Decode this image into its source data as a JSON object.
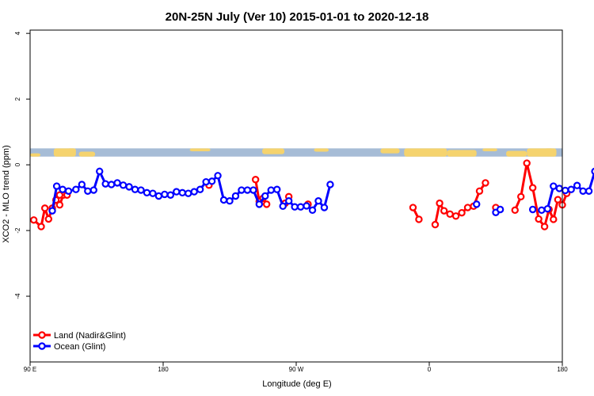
{
  "chart_data": {
    "type": "line",
    "title": "20N-25N July (Ver 10)   2015-01-01 to 2020-12-18",
    "xlabel": "Longitude (deg E)",
    "ylabel": "XCO2 - MLO trend (ppm)",
    "xlim": [
      90,
      450
    ],
    "ylim": [
      -6,
      4.1
    ],
    "x_ticks": [
      {
        "value": 90,
        "label": "90 E"
      },
      {
        "value": 180,
        "label": "180"
      },
      {
        "value": 270,
        "label": "90 W"
      },
      {
        "value": 360,
        "label": "0"
      },
      {
        "value": 450,
        "label": "180"
      }
    ],
    "y_ticks": [
      {
        "value": -4,
        "label": "-4"
      },
      {
        "value": -2,
        "label": "-2"
      },
      {
        "value": 0,
        "label": "0"
      },
      {
        "value": 2,
        "label": "2"
      },
      {
        "value": 4,
        "label": "4"
      }
    ],
    "grid": false,
    "legend_position": "bottom-left",
    "map_strip": {
      "y_from": 0.25,
      "y_to": 0.5,
      "ocean_color": "#a6bcd6",
      "land_color": "#f5d36e"
    },
    "series": [
      {
        "name": "Land (Nadir&Glint)",
        "color": "#ff0000",
        "segments": [
          [
            [
              92.5,
              -1.68
            ],
            [
              97.5,
              -1.88
            ],
            [
              100,
              -1.32
            ],
            [
              102.5,
              -1.65
            ],
            [
              105,
              -1.32
            ],
            [
              107.5,
              -1.07
            ],
            [
              110,
              -1.22
            ],
            [
              112.5,
              -0.92
            ],
            [
              115,
              -0.82
            ]
          ],
          [
            [
              110,
              -0.92
            ],
            [
              115,
              -0.92
            ]
          ],
          [
            [
              211,
              -0.62
            ]
          ],
          [
            [
              242.5,
              -0.45
            ],
            [
              245,
              -1.12
            ],
            [
              247.5,
              -1.02
            ],
            [
              250,
              -1.2
            ]
          ],
          [
            [
              262.5,
              -1.17
            ],
            [
              265,
              -0.97
            ]
          ],
          [
            [
              278,
              -1.2
            ]
          ],
          [
            [
              349,
              -1.3
            ],
            [
              353,
              -1.66
            ]
          ],
          [
            [
              364,
              -1.82
            ],
            [
              367,
              -1.17
            ],
            [
              370,
              -1.4
            ],
            [
              374,
              -1.5
            ],
            [
              378,
              -1.56
            ],
            [
              382,
              -1.46
            ],
            [
              386,
              -1.3
            ],
            [
              390,
              -1.26
            ],
            [
              394,
              -0.8
            ],
            [
              398,
              -0.55
            ]
          ],
          [
            [
              405,
              -1.3
            ]
          ],
          [
            [
              418,
              -1.38
            ],
            [
              422,
              -0.97
            ],
            [
              426,
              0.05
            ],
            [
              430,
              -0.7
            ],
            [
              434,
              -1.65
            ],
            [
              438,
              -1.88
            ],
            [
              441,
              -1.36
            ],
            [
              444,
              -1.66
            ],
            [
              447,
              -1.06
            ],
            [
              450,
              -1.22
            ],
            [
              453,
              -0.87
            ]
          ]
        ]
      },
      {
        "name": "Ocean (Glint)",
        "color": "#0000ff",
        "segments": [
          [
            [
              105,
              -1.4
            ],
            [
              108,
              -0.65
            ],
            [
              112,
              -0.75
            ],
            [
              116,
              -0.8
            ],
            [
              121,
              -0.75
            ],
            [
              125,
              -0.6
            ],
            [
              129,
              -0.8
            ],
            [
              133,
              -0.77
            ],
            [
              137,
              -0.2
            ],
            [
              141,
              -0.58
            ],
            [
              145,
              -0.6
            ],
            [
              149,
              -0.55
            ],
            [
              153,
              -0.62
            ],
            [
              157,
              -0.67
            ],
            [
              161,
              -0.75
            ],
            [
              165,
              -0.77
            ],
            [
              169,
              -0.85
            ],
            [
              173,
              -0.87
            ],
            [
              177,
              -0.95
            ],
            [
              181,
              -0.9
            ],
            [
              185,
              -0.92
            ],
            [
              189,
              -0.82
            ],
            [
              193,
              -0.85
            ],
            [
              197,
              -0.87
            ],
            [
              201,
              -0.82
            ],
            [
              205,
              -0.75
            ],
            [
              209,
              -0.52
            ],
            [
              213,
              -0.5
            ],
            [
              217,
              -0.33
            ],
            [
              221,
              -1.07
            ],
            [
              225,
              -1.1
            ],
            [
              229,
              -0.95
            ],
            [
              233,
              -0.77
            ],
            [
              237,
              -0.77
            ],
            [
              241,
              -0.77
            ],
            [
              245,
              -1.2
            ],
            [
              249,
              -0.95
            ],
            [
              253,
              -0.77
            ],
            [
              257,
              -0.75
            ],
            [
              261,
              -1.26
            ],
            [
              265,
              -1.1
            ],
            [
              269,
              -1.28
            ],
            [
              273,
              -1.28
            ],
            [
              277,
              -1.25
            ],
            [
              281,
              -1.38
            ],
            [
              285,
              -1.1
            ],
            [
              289,
              -1.3
            ],
            [
              293,
              -0.6
            ]
          ],
          [
            [
              392,
              -1.2
            ]
          ],
          [
            [
              405,
              -1.45
            ],
            [
              408,
              -1.36
            ]
          ],
          [
            [
              430,
              -1.36
            ]
          ],
          [
            [
              436,
              -1.38
            ],
            [
              440,
              -1.34
            ],
            [
              444,
              -0.65
            ],
            [
              448,
              -0.72
            ],
            [
              452,
              -0.78
            ],
            [
              456,
              -0.75
            ],
            [
              460,
              -0.63
            ],
            [
              464,
              -0.8
            ],
            [
              468,
              -0.8
            ],
            [
              472,
              -0.2
            ],
            [
              476,
              -0.57
            ],
            [
              480,
              -0.58
            ],
            [
              484,
              -0.52
            ],
            [
              488,
              -0.58
            ],
            [
              492,
              -0.68
            ],
            [
              496,
              -0.75
            ]
          ]
        ]
      }
    ]
  }
}
